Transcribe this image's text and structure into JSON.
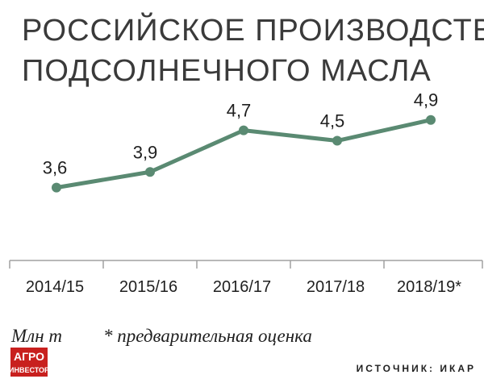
{
  "title_lines": [
    "РОССИЙСКОЕ ПРОИЗВОДСТВО",
    "ПОДСОЛНЕЧНОГО МАСЛА"
  ],
  "footnote": {
    "unit": "Млн т",
    "note": "* предварительная оценка",
    "source": "ИСТОЧНИК: ИКАР"
  },
  "logo": {
    "line1": "АГРО",
    "line2": "ИНВЕСТОР",
    "color": "#c8201e"
  },
  "colors": {
    "line": "#5a8a72",
    "axis": "#9a9a9a",
    "text": "#1f1f1f",
    "title": "#3a3a3a"
  },
  "chart_data": {
    "type": "line",
    "title": "РОССИЙСКОЕ ПРОИЗВОДСТВО ПОДСОЛНЕЧНОГО МАСЛА",
    "categories": [
      "2014/15",
      "2015/16",
      "2016/17",
      "2017/18",
      "2018/19*"
    ],
    "series": [
      {
        "values": [
          3.6,
          3.9,
          4.7,
          4.5,
          4.9
        ],
        "labels": [
          "3,6",
          "3,9",
          "4,7",
          "4,5",
          "4,9"
        ]
      }
    ],
    "ylabel": "Млн т",
    "ylim": [
      2.2,
      5.5
    ],
    "grid": false
  }
}
